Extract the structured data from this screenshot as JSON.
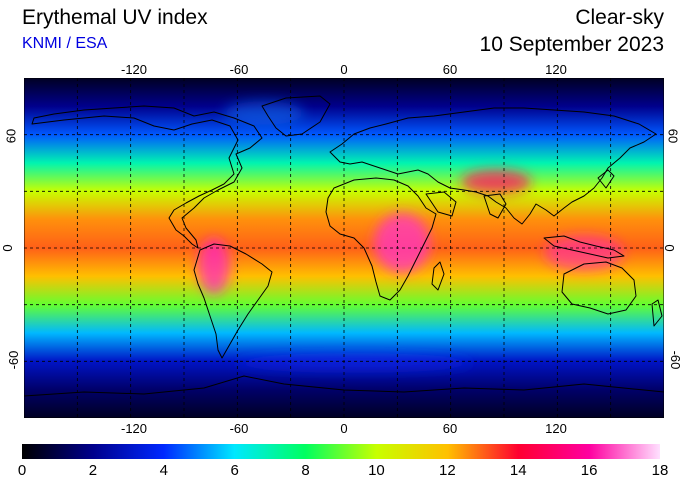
{
  "header": {
    "title": "Erythemal UV index",
    "source": "KNMI / ESA",
    "mode": "Clear-sky",
    "date": "10 September 2023"
  },
  "map": {
    "longitude_ticks": [
      "-120",
      "-60",
      "0",
      "60",
      "120"
    ],
    "latitude_ticks": [
      "60",
      "0",
      "-60"
    ],
    "gridlines": "dashed, every 30 degrees"
  },
  "colorbar": {
    "ticks": [
      "0",
      "2",
      "4",
      "6",
      "8",
      "10",
      "12",
      "14",
      "16",
      "18"
    ],
    "min": 0,
    "max": 18,
    "colors": [
      "#000000",
      "#00008c",
      "#0028ff",
      "#00e8ff",
      "#00ff60",
      "#c8ff00",
      "#ffc000",
      "#ff0030",
      "#ff00a0",
      "#ffe0ff"
    ]
  },
  "chart_data": {
    "type": "heatmap",
    "title": "Erythemal UV index",
    "subtitle": "Clear-sky, 10 September 2023",
    "xlabel": "",
    "ylabel": "",
    "xlim": [
      -180,
      180
    ],
    "ylim": [
      -90,
      90
    ],
    "x_ticks": [
      -120,
      -60,
      0,
      60,
      120
    ],
    "y_ticks": [
      60,
      0,
      -60
    ],
    "value_range": [
      0,
      18
    ],
    "uv_by_latitude": {
      "lat": [
        90,
        75,
        60,
        45,
        30,
        15,
        0,
        -15,
        -30,
        -45,
        -60,
        -75,
        -90
      ],
      "uv": [
        0.5,
        2,
        4.5,
        7,
        10,
        12.5,
        13,
        12,
        9,
        5.5,
        3,
        1.5,
        0.5
      ]
    }
  }
}
